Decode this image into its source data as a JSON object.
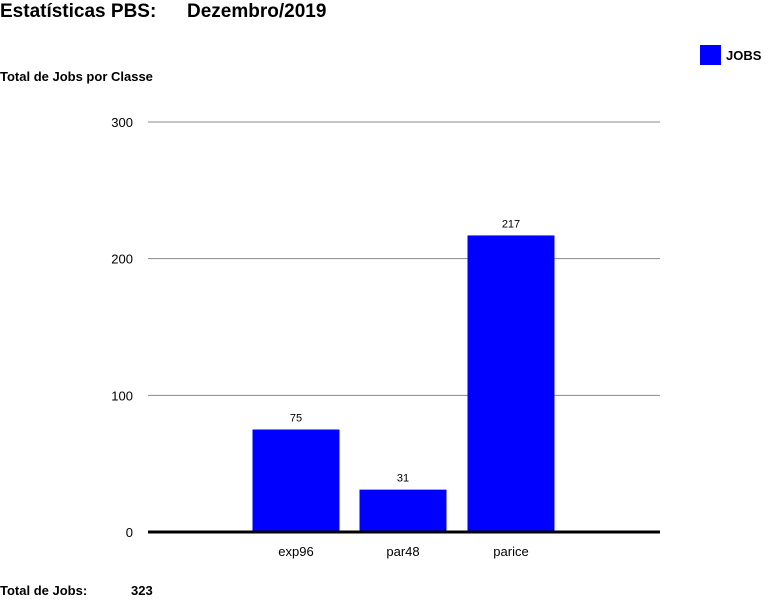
{
  "header": {
    "title": "Estatísticas PBS:",
    "period": "Dezembro/2019"
  },
  "legend": {
    "label": "JOBS"
  },
  "colors": {
    "bar": "#0000ff",
    "grid": "#888888",
    "axis": "#000000"
  },
  "chart_data": {
    "type": "bar",
    "title": "Total de Jobs por Classe",
    "xlabel": "",
    "ylabel": "",
    "categories": [
      "exp96",
      "par48",
      "parice"
    ],
    "series": [
      {
        "name": "JOBS",
        "values": [
          75,
          31,
          217
        ]
      }
    ],
    "data_labels": [
      "75",
      "31",
      "217"
    ],
    "ylim": [
      0,
      300
    ],
    "yticks": [
      0,
      100,
      200,
      300
    ],
    "grid": true,
    "legend_position": "top-right"
  },
  "footer": {
    "total_label": "Total de Jobs:",
    "total_value": "323"
  }
}
